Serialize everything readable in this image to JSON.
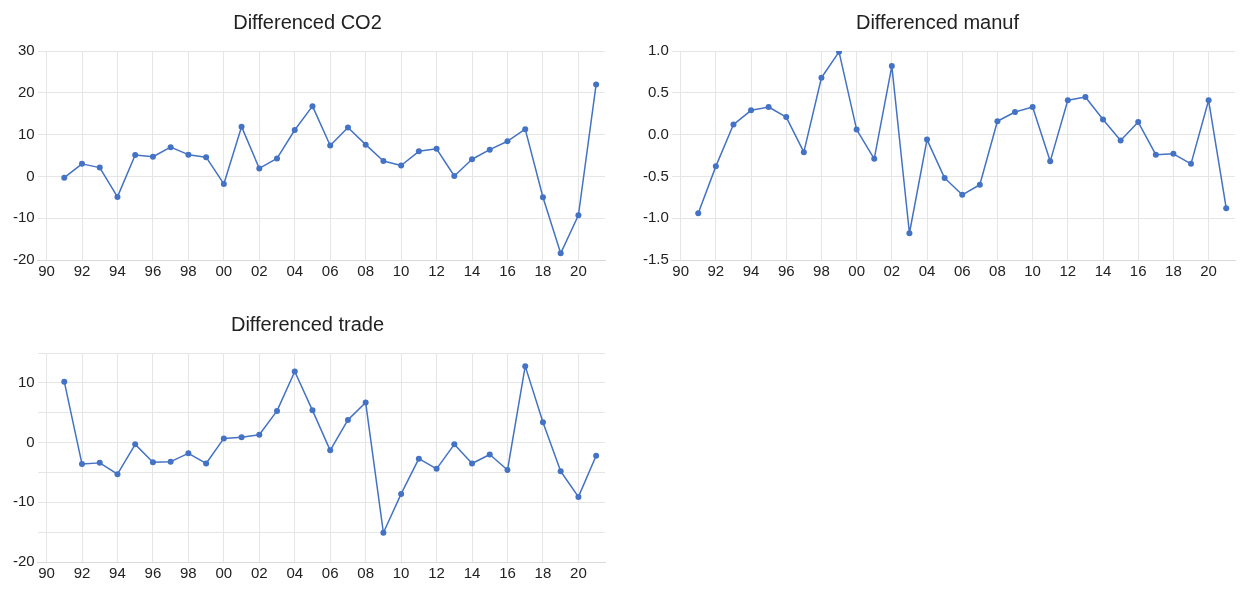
{
  "chart_data": [
    {
      "type": "line",
      "title": "Differenced CO2",
      "x": [
        1991,
        1992,
        1993,
        1994,
        1995,
        1996,
        1997,
        1998,
        1999,
        2000,
        2001,
        2002,
        2003,
        2004,
        2005,
        2006,
        2007,
        2008,
        2009,
        2010,
        2011,
        2012,
        2013,
        2014,
        2015,
        2016,
        2017,
        2018,
        2019,
        2020,
        2021
      ],
      "series": [
        {
          "color": "#4472c4",
          "values": [
            -0.3,
            3.0,
            2.1,
            -4.9,
            5.1,
            4.7,
            7.0,
            5.2,
            4.6,
            -1.8,
            11.9,
            1.9,
            4.3,
            11.1,
            16.8,
            7.4,
            11.7,
            7.6,
            3.7,
            2.6,
            6.0,
            6.6,
            0.1,
            4.1,
            6.4,
            8.4,
            11.3,
            -5.0,
            -18.4,
            -9.3,
            22.0
          ]
        }
      ],
      "xlim": [
        1989.5,
        2021.5
      ],
      "xticks": [
        {
          "value": 1990,
          "label": "90"
        },
        {
          "value": 1992,
          "label": "92"
        },
        {
          "value": 1994,
          "label": "94"
        },
        {
          "value": 1996,
          "label": "96"
        },
        {
          "value": 1998,
          "label": "98"
        },
        {
          "value": 2000,
          "label": "00"
        },
        {
          "value": 2002,
          "label": "02"
        },
        {
          "value": 2004,
          "label": "04"
        },
        {
          "value": 2006,
          "label": "06"
        },
        {
          "value": 2008,
          "label": "08"
        },
        {
          "value": 2010,
          "label": "10"
        },
        {
          "value": 2012,
          "label": "12"
        },
        {
          "value": 2014,
          "label": "14"
        },
        {
          "value": 2016,
          "label": "16"
        },
        {
          "value": 2018,
          "label": "18"
        },
        {
          "value": 2020,
          "label": "20"
        }
      ],
      "ylim": [
        -20,
        30
      ],
      "yticks": [
        -20,
        -10,
        0,
        10,
        20,
        30
      ],
      "grid": true,
      "legend": false,
      "marker": "circle",
      "line_style": "solid"
    },
    {
      "type": "line",
      "title": "Differenced manuf",
      "x": [
        1991,
        1992,
        1993,
        1994,
        1995,
        1996,
        1997,
        1998,
        1999,
        2000,
        2001,
        2002,
        2003,
        2004,
        2005,
        2006,
        2007,
        2008,
        2009,
        2010,
        2011,
        2012,
        2013,
        2014,
        2015,
        2016,
        2017,
        2018,
        2019,
        2020,
        2021
      ],
      "series": [
        {
          "color": "#4472c4",
          "values": [
            -0.94,
            -0.38,
            0.12,
            0.29,
            0.33,
            0.21,
            -0.21,
            0.68,
            0.99,
            0.06,
            -0.29,
            0.82,
            -1.18,
            -0.06,
            -0.52,
            -0.72,
            -0.6,
            0.16,
            0.27,
            0.33,
            -0.32,
            0.41,
            0.45,
            0.18,
            -0.07,
            0.15,
            -0.24,
            -0.23,
            -0.35,
            0.41,
            -0.88
          ]
        }
      ],
      "xlim": [
        1989.5,
        2021.5
      ],
      "xticks": [
        {
          "value": 1990,
          "label": "90"
        },
        {
          "value": 1992,
          "label": "92"
        },
        {
          "value": 1994,
          "label": "94"
        },
        {
          "value": 1996,
          "label": "96"
        },
        {
          "value": 1998,
          "label": "98"
        },
        {
          "value": 2000,
          "label": "00"
        },
        {
          "value": 2002,
          "label": "02"
        },
        {
          "value": 2004,
          "label": "04"
        },
        {
          "value": 2006,
          "label": "06"
        },
        {
          "value": 2008,
          "label": "08"
        },
        {
          "value": 2010,
          "label": "10"
        },
        {
          "value": 2012,
          "label": "12"
        },
        {
          "value": 2014,
          "label": "14"
        },
        {
          "value": 2016,
          "label": "16"
        },
        {
          "value": 2018,
          "label": "18"
        },
        {
          "value": 2020,
          "label": "20"
        }
      ],
      "ylim": [
        -1.5,
        1.0
      ],
      "yticks": [
        {
          "value": -1.5,
          "label": "-1.5"
        },
        {
          "value": -1.0,
          "label": "-1.0"
        },
        {
          "value": -0.5,
          "label": "-0.5"
        },
        {
          "value": 0,
          "label": "0.0"
        },
        {
          "value": 0.5,
          "label": "0.5"
        },
        {
          "value": 1.0,
          "label": "1.0"
        }
      ],
      "grid": true,
      "legend": false,
      "marker": "circle",
      "line_style": "solid"
    },
    {
      "type": "line",
      "title": "Differenced trade",
      "x": [
        1991,
        1992,
        1993,
        1994,
        1995,
        1996,
        1997,
        1998,
        1999,
        2000,
        2001,
        2002,
        2003,
        2004,
        2005,
        2006,
        2007,
        2008,
        2009,
        2010,
        2011,
        2012,
        2013,
        2014,
        2015,
        2016,
        2017,
        2018,
        2019,
        2020,
        2021
      ],
      "series": [
        {
          "color": "#4472c4",
          "values": [
            10.2,
            -3.6,
            -3.4,
            -5.3,
            -0.3,
            -3.3,
            -3.2,
            -1.8,
            -3.5,
            0.7,
            0.9,
            1.3,
            5.3,
            11.9,
            5.4,
            -1.3,
            3.8,
            6.7,
            -15.1,
            -8.6,
            -2.7,
            -4.4,
            -0.3,
            -3.5,
            -2.0,
            -4.6,
            12.8,
            3.4,
            -4.8,
            -9.1,
            -2.2
          ]
        }
      ],
      "xlim": [
        1989.5,
        2021.5
      ],
      "xticks": [
        {
          "value": 1990,
          "label": "90"
        },
        {
          "value": 1992,
          "label": "92"
        },
        {
          "value": 1994,
          "label": "94"
        },
        {
          "value": 1996,
          "label": "96"
        },
        {
          "value": 1998,
          "label": "98"
        },
        {
          "value": 2000,
          "label": "00"
        },
        {
          "value": 2002,
          "label": "02"
        },
        {
          "value": 2004,
          "label": "04"
        },
        {
          "value": 2006,
          "label": "06"
        },
        {
          "value": 2008,
          "label": "08"
        },
        {
          "value": 2010,
          "label": "10"
        },
        {
          "value": 2012,
          "label": "12"
        },
        {
          "value": 2014,
          "label": "14"
        },
        {
          "value": 2016,
          "label": "16"
        },
        {
          "value": 2018,
          "label": "18"
        },
        {
          "value": 2020,
          "label": "20"
        }
      ],
      "ylim": [
        -20,
        15
      ],
      "yticks": [
        -20,
        {
          "value": -15,
          "label": null
        },
        -10,
        {
          "value": -5,
          "label": null
        },
        0,
        {
          "value": 5,
          "label": null
        },
        10,
        {
          "value": 15,
          "label": null
        }
      ],
      "grid": true,
      "legend": false,
      "marker": "circle",
      "line_style": "solid"
    }
  ]
}
